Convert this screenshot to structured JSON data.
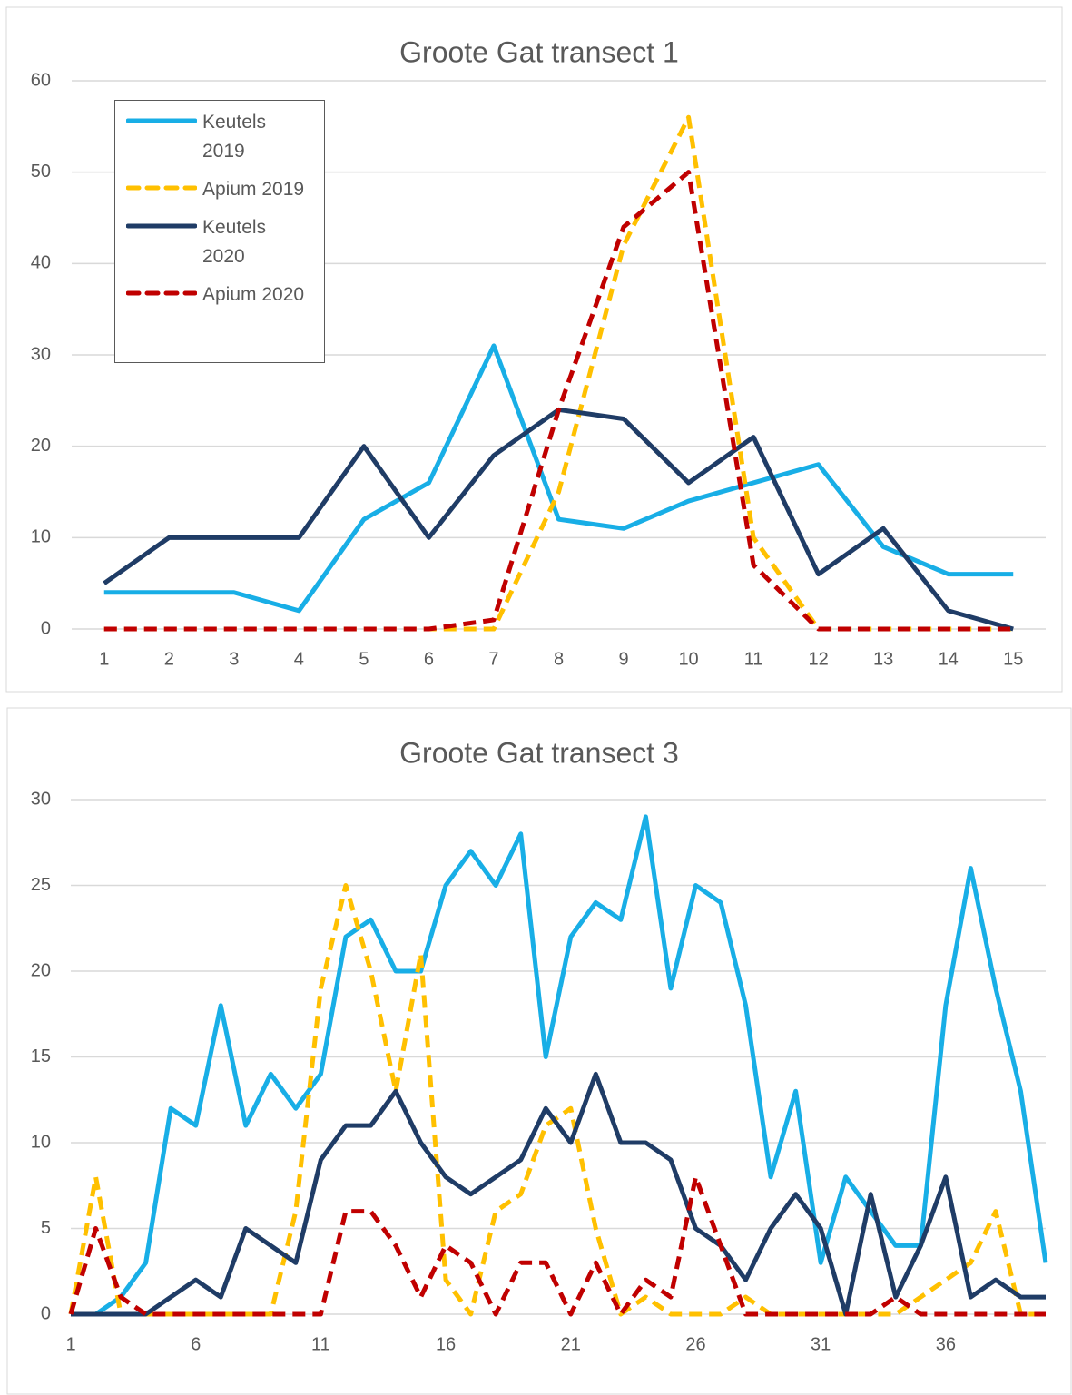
{
  "chart_data": [
    {
      "type": "line",
      "title": "Groote Gat transect 1",
      "categories": [
        "1",
        "2",
        "3",
        "4",
        "5",
        "6",
        "7",
        "8",
        "9",
        "10",
        "11",
        "12",
        "13",
        "14",
        "15"
      ],
      "ylim": [
        0,
        60
      ],
      "yticks": [
        0,
        10,
        20,
        30,
        40,
        50,
        60
      ],
      "grid": true,
      "legend": "top-left",
      "series": [
        {
          "name": "Keutels 2019",
          "color": "#18aee6",
          "dashed": false,
          "values": [
            4,
            4,
            4,
            2,
            12,
            16,
            31,
            12,
            11,
            14,
            16,
            18,
            9,
            6,
            6
          ]
        },
        {
          "name": "Apium 2019",
          "color": "#ffc000",
          "dashed": true,
          "values": [
            0,
            0,
            0,
            0,
            0,
            0,
            0,
            15,
            42,
            56,
            10,
            0,
            0,
            0,
            0
          ]
        },
        {
          "name": "Keutels 2020",
          "color": "#1f3c66",
          "dashed": false,
          "values": [
            5,
            10,
            10,
            10,
            20,
            10,
            19,
            24,
            23,
            16,
            21,
            6,
            11,
            2,
            0
          ]
        },
        {
          "name": "Apium 2020",
          "color": "#c00000",
          "dashed": true,
          "values": [
            0,
            0,
            0,
            0,
            0,
            0,
            1,
            24,
            44,
            50,
            7,
            0,
            0,
            0,
            0
          ]
        }
      ]
    },
    {
      "type": "line",
      "title": "Groote Gat transect 3",
      "x": [
        1,
        2,
        3,
        4,
        5,
        6,
        7,
        8,
        9,
        10,
        11,
        12,
        13,
        14,
        15,
        16,
        17,
        18,
        19,
        20,
        21,
        22,
        23,
        24,
        25,
        26,
        27,
        28,
        29,
        30,
        31,
        32,
        33,
        34,
        35,
        36,
        37,
        38,
        39,
        40
      ],
      "xlim": [
        1,
        40
      ],
      "xticks": [
        1,
        6,
        11,
        16,
        21,
        26,
        31,
        36
      ],
      "ylim": [
        0,
        30
      ],
      "yticks": [
        0,
        5,
        10,
        15,
        20,
        25,
        30
      ],
      "grid": true,
      "series": [
        {
          "color": "#18aee6",
          "dashed": false,
          "values": [
            0,
            0,
            1,
            3,
            12,
            11,
            18,
            11,
            14,
            12,
            14,
            22,
            23,
            20,
            20,
            25,
            27,
            25,
            28,
            15,
            22,
            24,
            23,
            29,
            19,
            25,
            24,
            18,
            8,
            13,
            3,
            8,
            6,
            4,
            4,
            18,
            26,
            19,
            13,
            3
          ]
        },
        {
          "color": "#ffc000",
          "dashed": true,
          "values": [
            0,
            8,
            0,
            0,
            0,
            0,
            0,
            0,
            0,
            6,
            19,
            25,
            20,
            13,
            21,
            2,
            0,
            6,
            7,
            11,
            12,
            5,
            0,
            1,
            0,
            0,
            0,
            1,
            0,
            0,
            0,
            0,
            0,
            0,
            1,
            2,
            3,
            6,
            0,
            0
          ]
        },
        {
          "color": "#1f3c66",
          "dashed": false,
          "values": [
            0,
            0,
            0,
            0,
            1,
            2,
            1,
            5,
            4,
            3,
            9,
            11,
            11,
            13,
            10,
            8,
            7,
            8,
            9,
            12,
            10,
            14,
            10,
            10,
            9,
            5,
            4,
            2,
            5,
            7,
            5,
            0,
            7,
            1,
            4,
            8,
            1,
            2,
            1,
            1
          ]
        },
        {
          "color": "#c00000",
          "dashed": true,
          "values": [
            0,
            5,
            1,
            0,
            0,
            0,
            0,
            0,
            0,
            0,
            0,
            6,
            6,
            4,
            1,
            4,
            3,
            0,
            3,
            3,
            0,
            3,
            0,
            2,
            1,
            8,
            4,
            0,
            0,
            0,
            0,
            0,
            0,
            1,
            0,
            0,
            0,
            0,
            0,
            0
          ]
        }
      ]
    }
  ]
}
